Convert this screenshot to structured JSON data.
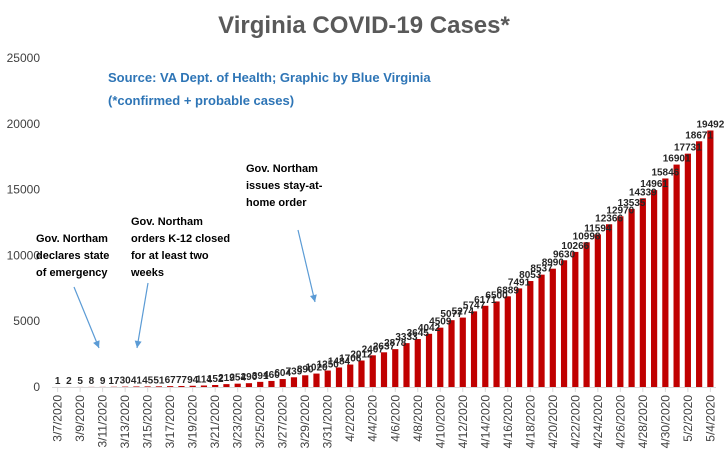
{
  "chart_data": {
    "type": "bar",
    "title": "Virginia COVID-19 Cases*",
    "subtitle_lines": [
      "Source: VA Dept. of Health; Graphic by Blue Virginia",
      "(*confirmed + probable cases)"
    ],
    "xlabel": "",
    "ylabel": "",
    "ylim": [
      0,
      25000
    ],
    "yticks": [
      "0",
      "5000",
      "10000",
      "15000",
      "20000",
      "25000"
    ],
    "grid": false,
    "bar_color": "#C00000",
    "categories": [
      "3/7/2020",
      "3/8/2020",
      "3/9/2020",
      "3/10/2020",
      "3/11/2020",
      "3/12/2020",
      "3/13/2020",
      "3/14/2020",
      "3/15/2020",
      "3/16/2020",
      "3/17/2020",
      "3/18/2020",
      "3/19/2020",
      "3/20/2020",
      "3/21/2020",
      "3/22/2020",
      "3/23/2020",
      "3/24/2020",
      "3/25/2020",
      "3/26/2020",
      "3/27/2020",
      "3/28/2020",
      "3/29/2020",
      "3/30/2020",
      "3/31/2020",
      "4/1/2020",
      "4/2/2020",
      "4/3/2020",
      "4/4/2020",
      "4/5/2020",
      "4/6/2020",
      "4/7/2020",
      "4/8/2020",
      "4/9/2020",
      "4/10/2020",
      "4/11/2020",
      "4/12/2020",
      "4/13/2020",
      "4/14/2020",
      "4/15/2020",
      "4/16/2020",
      "4/17/2020",
      "4/18/2020",
      "4/19/2020",
      "4/20/2020",
      "4/21/2020",
      "4/22/2020",
      "4/23/2020",
      "4/24/2020",
      "4/25/2020",
      "4/26/2020",
      "4/27/2020",
      "4/28/2020",
      "4/29/2020",
      "4/30/2020",
      "5/1/2020",
      "5/2/2020",
      "5/3/2020",
      "5/4/2020"
    ],
    "xtick_labels": [
      "3/7/2020",
      "3/9/2020",
      "3/11/2020",
      "3/13/2020",
      "3/15/2020",
      "3/17/2020",
      "3/19/2020",
      "3/21/2020",
      "3/23/2020",
      "3/25/2020",
      "3/27/2020",
      "3/29/2020",
      "3/31/2020",
      "4/2/2020",
      "4/4/2020",
      "4/6/2020",
      "4/8/2020",
      "4/10/2020",
      "4/12/2020",
      "4/14/2020",
      "4/16/2020",
      "4/18/2020",
      "4/20/2020",
      "4/22/2020",
      "4/24/2020",
      "4/26/2020",
      "4/28/2020",
      "4/30/2020",
      "5/2/2020",
      "5/4/2020"
    ],
    "values": [
      1,
      2,
      5,
      8,
      9,
      17,
      30,
      41,
      45,
      51,
      67,
      77,
      94,
      114,
      152,
      219,
      254,
      290,
      391,
      460,
      604,
      739,
      890,
      1020,
      1250,
      1484,
      1706,
      2012,
      2407,
      2637,
      2878,
      3333,
      3645,
      4042,
      4509,
      5077,
      5274,
      5747,
      6171,
      6500,
      6889,
      7491,
      8053,
      8537,
      8990,
      9630,
      10266,
      10998,
      11594,
      12366,
      12970,
      13535,
      14339,
      14961,
      15846,
      16901,
      17731,
      18671,
      19492
    ],
    "annotations": [
      {
        "lines": [
          "Gov. Northam",
          "declares state",
          "of emergency"
        ]
      },
      {
        "lines": [
          "Gov. Northam",
          "orders K-12 closed",
          "for at least two",
          "weeks"
        ]
      },
      {
        "lines": [
          "Gov. Northam",
          "issues stay-at-",
          "home order"
        ]
      }
    ]
  }
}
